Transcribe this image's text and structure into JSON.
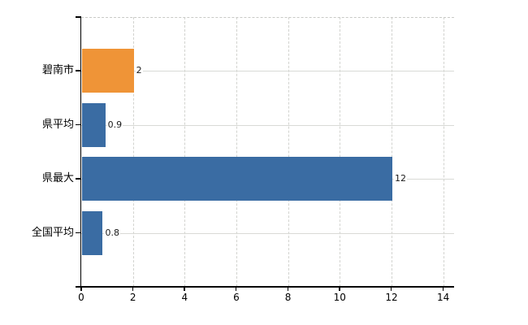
{
  "chart_data": {
    "type": "bar",
    "orientation": "horizontal",
    "categories": [
      "碧南市",
      "県平均",
      "県最大",
      "全国平均"
    ],
    "values": [
      2,
      0.9,
      12,
      0.8
    ],
    "value_labels": [
      "2",
      "0.9",
      "12",
      "0.8"
    ],
    "bar_colors": [
      "#EF9437",
      "#3A6CA3",
      "#3A6CA3",
      "#3A6CA3"
    ],
    "x_ticks": [
      0,
      2,
      4,
      6,
      8,
      10,
      12,
      14
    ],
    "x_tick_labels": [
      "0",
      "2",
      "4",
      "6",
      "8",
      "10",
      "12",
      "14"
    ],
    "xlim": [
      0,
      14.43
    ],
    "legend": "none",
    "grid": {
      "vertical_style": "dashed",
      "vertical_color": "#d2d3cf",
      "horizontal_style": "solid",
      "horizontal_color": "#d9dad6",
      "top_border_style": "dashed",
      "top_border_color": "#c9cac6"
    },
    "colors": {
      "highlight_bar": "#EF9437",
      "default_bar": "#3A6CA3",
      "axis": "#000000",
      "value_label_text": "#1a1a1a",
      "tick_label_text": "#000000",
      "background": "#ffffff"
    }
  }
}
